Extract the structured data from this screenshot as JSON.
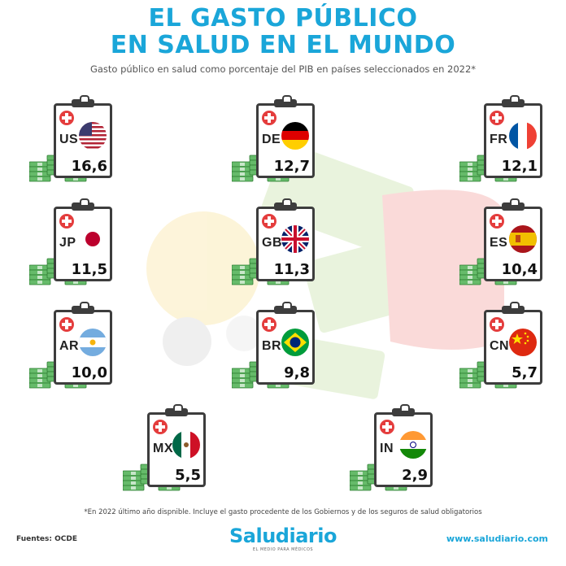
{
  "header": {
    "title_line1": "EL GASTO PÚBLICO",
    "title_line2": "EN SALUD EN EL MUNDO",
    "subtitle": "Gasto público en salud como porcentaje del PIB en países seleccionados en 2022*"
  },
  "chart_data": {
    "type": "table",
    "categories": [
      "US",
      "DE",
      "FR",
      "JP",
      "GB",
      "ES",
      "AR",
      "BR",
      "CN",
      "MX",
      "IN"
    ],
    "values": [
      16.6,
      12.7,
      12.1,
      11.5,
      11.3,
      10.4,
      10.0,
      9.8,
      5.7,
      5.5,
      2.9
    ],
    "value_labels": [
      "16,6",
      "12,7",
      "12,1",
      "11,5",
      "11,3",
      "10,4",
      "10,0",
      "9,8",
      "5,7",
      "5,5",
      "2,9"
    ]
  },
  "footer": {
    "note": "*En 2022 último año dispnible. Incluye el gasto procedente de los Gobiernos y de los seguros de salud obligatorios",
    "sources": "Fuentes: OCDE",
    "logo": "Saludiario",
    "logo_tagline": "EL MEDIO PARA MÉDICOS",
    "website": "www.saludiario.com"
  },
  "colors": {
    "accent": "#1aa6d9",
    "cross": "#e43d3d",
    "money": "#4caf50"
  }
}
